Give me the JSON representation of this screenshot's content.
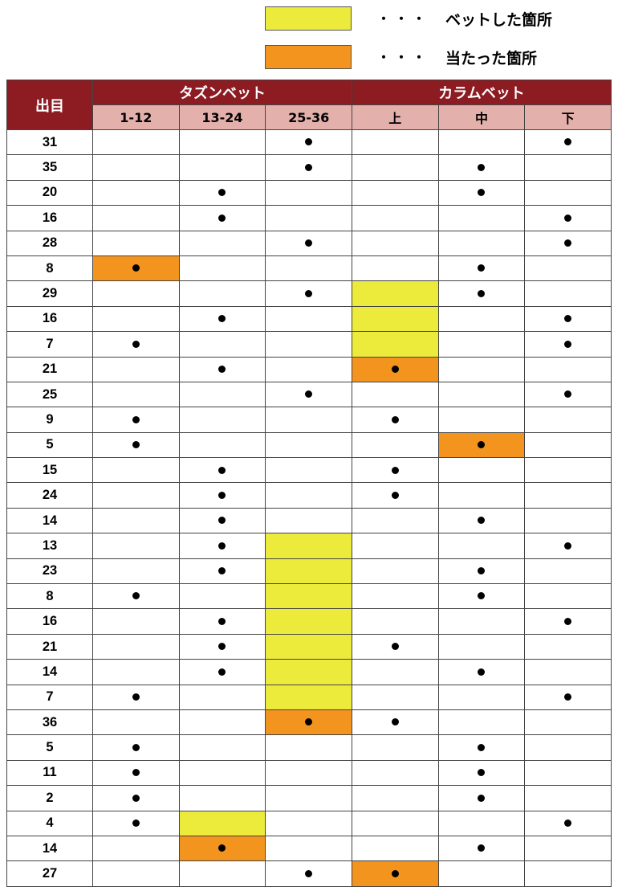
{
  "colors": {
    "bet": "#ecea3a",
    "hit": "#f3941f",
    "header": "#8c1b22",
    "subheader": "#e4b0ab"
  },
  "legend": {
    "bet": {
      "dots": "・・・",
      "label": "ベットした箇所"
    },
    "hit": {
      "dots": "・・・",
      "label": "当たった箇所"
    }
  },
  "table": {
    "corner": "出目",
    "groups": [
      "タズンベット",
      "カラムベット"
    ],
    "columns": [
      "1-12",
      "13-24",
      "25-36",
      "上",
      "中",
      "下"
    ],
    "rows": [
      {
        "n": "31",
        "dots": [
          3,
          6
        ],
        "bet": [],
        "hit": []
      },
      {
        "n": "35",
        "dots": [
          3,
          5
        ],
        "bet": [],
        "hit": []
      },
      {
        "n": "20",
        "dots": [
          2,
          5
        ],
        "bet": [],
        "hit": []
      },
      {
        "n": "16",
        "dots": [
          2,
          6
        ],
        "bet": [],
        "hit": []
      },
      {
        "n": "28",
        "dots": [
          3,
          6
        ],
        "bet": [],
        "hit": []
      },
      {
        "n": "8",
        "dots": [
          1,
          5
        ],
        "bet": [],
        "hit": [
          1
        ]
      },
      {
        "n": "29",
        "dots": [
          3,
          5
        ],
        "bet": [
          4
        ],
        "hit": []
      },
      {
        "n": "16",
        "dots": [
          2,
          6
        ],
        "bet": [
          4
        ],
        "hit": []
      },
      {
        "n": "7",
        "dots": [
          1,
          6
        ],
        "bet": [
          4
        ],
        "hit": []
      },
      {
        "n": "21",
        "dots": [
          2,
          4
        ],
        "bet": [],
        "hit": [
          4
        ]
      },
      {
        "n": "25",
        "dots": [
          3,
          6
        ],
        "bet": [],
        "hit": []
      },
      {
        "n": "9",
        "dots": [
          1,
          4
        ],
        "bet": [],
        "hit": []
      },
      {
        "n": "5",
        "dots": [
          1,
          5
        ],
        "bet": [],
        "hit": [
          5
        ]
      },
      {
        "n": "15",
        "dots": [
          2,
          4
        ],
        "bet": [],
        "hit": []
      },
      {
        "n": "24",
        "dots": [
          2,
          4
        ],
        "bet": [],
        "hit": []
      },
      {
        "n": "14",
        "dots": [
          2,
          5
        ],
        "bet": [],
        "hit": []
      },
      {
        "n": "13",
        "dots": [
          2,
          6
        ],
        "bet": [
          3
        ],
        "hit": []
      },
      {
        "n": "23",
        "dots": [
          2,
          5
        ],
        "bet": [
          3
        ],
        "hit": []
      },
      {
        "n": "8",
        "dots": [
          1,
          5
        ],
        "bet": [
          3
        ],
        "hit": []
      },
      {
        "n": "16",
        "dots": [
          2,
          6
        ],
        "bet": [
          3
        ],
        "hit": []
      },
      {
        "n": "21",
        "dots": [
          2,
          4
        ],
        "bet": [
          3
        ],
        "hit": []
      },
      {
        "n": "14",
        "dots": [
          2,
          5
        ],
        "bet": [
          3
        ],
        "hit": []
      },
      {
        "n": "7",
        "dots": [
          1,
          6
        ],
        "bet": [
          3
        ],
        "hit": []
      },
      {
        "n": "36",
        "dots": [
          3,
          4
        ],
        "bet": [],
        "hit": [
          3
        ]
      },
      {
        "n": "5",
        "dots": [
          1,
          5
        ],
        "bet": [],
        "hit": []
      },
      {
        "n": "11",
        "dots": [
          1,
          5
        ],
        "bet": [],
        "hit": []
      },
      {
        "n": "2",
        "dots": [
          1,
          5
        ],
        "bet": [],
        "hit": []
      },
      {
        "n": "4",
        "dots": [
          1,
          6
        ],
        "bet": [
          2
        ],
        "hit": []
      },
      {
        "n": "14",
        "dots": [
          2,
          5
        ],
        "bet": [],
        "hit": [
          2
        ]
      },
      {
        "n": "27",
        "dots": [
          3,
          4
        ],
        "bet": [],
        "hit": [
          4
        ]
      }
    ]
  }
}
